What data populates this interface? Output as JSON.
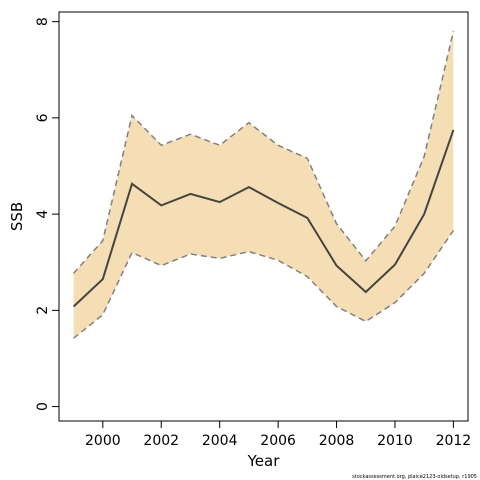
{
  "chart_data": {
    "type": "area",
    "xlabel": "Year",
    "ylabel": "SSB",
    "xlim": [
      1998.5,
      2012.5
    ],
    "ylim": [
      -0.3,
      8.2
    ],
    "x_ticks": [
      2000,
      2002,
      2004,
      2006,
      2008,
      2010,
      2012
    ],
    "x_tick_labels": [
      "2000",
      "2002",
      "2004",
      "2006",
      "2008",
      "2010",
      "2012"
    ],
    "y_ticks": [
      0,
      2,
      4,
      6,
      8
    ],
    "y_tick_labels": [
      "0",
      "2",
      "4",
      "6",
      "8"
    ],
    "grid": false,
    "x": [
      1999,
      2000,
      2001,
      2002,
      2003,
      2004,
      2005,
      2006,
      2007,
      2008,
      2009,
      2010,
      2011,
      2012
    ],
    "series": [
      {
        "role": "estimate",
        "values": [
          2.08,
          2.65,
          4.63,
          4.18,
          4.42,
          4.25,
          4.56,
          4.23,
          3.92,
          2.93,
          2.38,
          2.95,
          4.0,
          5.75
        ]
      },
      {
        "role": "upper",
        "values": [
          2.77,
          3.45,
          6.05,
          5.43,
          5.66,
          5.43,
          5.9,
          5.43,
          5.16,
          3.8,
          3.03,
          3.75,
          5.2,
          7.8
        ]
      },
      {
        "role": "lower",
        "values": [
          1.42,
          1.91,
          3.2,
          2.93,
          3.17,
          3.08,
          3.22,
          3.04,
          2.7,
          2.08,
          1.77,
          2.16,
          2.77,
          3.66
        ]
      }
    ],
    "colors": {
      "band": "#f5deb3",
      "line": "#444444",
      "bounds": "#808080"
    }
  },
  "credit": "stockassessment.org, plaice2123-oldsetup, r1905"
}
